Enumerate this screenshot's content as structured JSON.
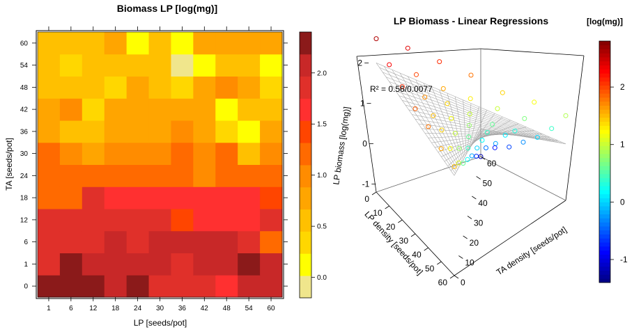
{
  "chart_data": [
    {
      "type": "heatmap",
      "title": "Biomass LP [log(mg)]",
      "xlabel": "LP [seeds/pot]",
      "ylabel": "TA [seeds/pot]",
      "x_categories": [
        "1",
        "6",
        "12",
        "18",
        "24",
        "30",
        "36",
        "42",
        "48",
        "54",
        "60"
      ],
      "y_categories": [
        "0",
        "1",
        "6",
        "12",
        "18",
        "24",
        "30",
        "36",
        "42",
        "48",
        "54",
        "60"
      ],
      "values": [
        [
          2.2,
          2.25,
          2.2,
          2.05,
          2.2,
          1.95,
          1.95,
          1.95,
          1.55,
          2.0,
          2.05
        ],
        [
          1.9,
          2.35,
          2.05,
          2.0,
          2.15,
          2.05,
          1.8,
          2.1,
          2.1,
          2.2,
          2.0
        ],
        [
          1.9,
          1.95,
          1.95,
          2.0,
          1.9,
          2.0,
          2.0,
          2.0,
          2.0,
          1.85,
          1.3
        ],
        [
          1.75,
          1.8,
          1.8,
          1.75,
          1.9,
          1.75,
          1.35,
          1.65,
          1.65,
          1.65,
          1.8
        ],
        [
          1.3,
          1.3,
          1.75,
          1.65,
          1.7,
          1.55,
          1.55,
          1.7,
          1.7,
          1.6,
          1.4
        ],
        [
          1.2,
          1.25,
          1.25,
          1.2,
          1.15,
          1.1,
          1.1,
          1.05,
          1.2,
          1.15,
          1.2
        ],
        [
          1.2,
          1.0,
          0.7,
          1.05,
          1.0,
          1.0,
          1.1,
          0.9,
          1.1,
          0.65,
          0.95
        ],
        [
          0.75,
          0.65,
          0.65,
          0.75,
          0.7,
          0.75,
          0.9,
          0.7,
          0.3,
          0.05,
          0.7
        ],
        [
          0.7,
          0.9,
          0.25,
          0.8,
          0.7,
          0.75,
          0.7,
          0.7,
          0.05,
          0.65,
          0.65
        ],
        [
          0.65,
          0.65,
          0.65,
          0.3,
          0.85,
          0.65,
          0.35,
          0.75,
          0.95,
          0.85,
          0.3
        ],
        [
          0.6,
          0.35,
          0.6,
          0.65,
          0.45,
          0.6,
          -0.2,
          0.05,
          0.6,
          0.6,
          0.05
        ],
        [
          0.55,
          0.55,
          0.5,
          0.85,
          0.05,
          0.45,
          0.1,
          0.75,
          0.75,
          0.75,
          0.7
        ]
      ],
      "colorbar": {
        "range": [
          -0.2,
          2.4
        ],
        "ticks": [
          "0.0",
          "0.5",
          "1.0",
          "1.5",
          "2.0"
        ],
        "tick_values": [
          0.0,
          0.5,
          1.0,
          1.5,
          2.0
        ]
      },
      "colors": [
        "#F0E68C",
        "#FFFF00",
        "#FFD700",
        "#FFC000",
        "#FFA500",
        "#FF8C00",
        "#FF6A00",
        "#FF4500",
        "#FF3030",
        "#E0302A",
        "#C82828",
        "#8B1A1A"
      ]
    },
    {
      "type": "scatter",
      "title": "LP Biomass - Linear Regressions",
      "zlabel": "LP biomass [log(mg)]",
      "xlabel": "LP density [seeds/pot]",
      "ylabel": "TA density [seeds/pot]",
      "annotation": "R² = 0.56/0.0077",
      "z_ticks": [
        "-1",
        "0",
        "1",
        "2"
      ],
      "lp_ticks": [
        "0",
        "10",
        "20",
        "30",
        "40",
        "50",
        "60"
      ],
      "ta_ticks": [
        "0",
        "10",
        "20",
        "30",
        "40",
        "50",
        "60"
      ],
      "colorbar": {
        "title": "[log(mg)]",
        "ticks": [
          "-1",
          "0",
          "1",
          "2"
        ],
        "tick_values": [
          -1,
          0,
          1,
          2
        ],
        "range": [
          -1.4,
          2.8
        ]
      },
      "points": [
        {
          "lp": 0,
          "ta": 0,
          "z": 2.6
        },
        {
          "lp": 0,
          "ta": 10,
          "z": 2.4
        },
        {
          "lp": 0,
          "ta": 20,
          "z": 2.1
        },
        {
          "lp": 0,
          "ta": 30,
          "z": 1.8
        },
        {
          "lp": 0,
          "ta": 40,
          "z": 1.4
        },
        {
          "lp": 0,
          "ta": 50,
          "z": 1.2
        },
        {
          "lp": 0,
          "ta": 60,
          "z": 0.9
        },
        {
          "lp": 10,
          "ta": 0,
          "z": 2.3
        },
        {
          "lp": 10,
          "ta": 10,
          "z": 2.0
        },
        {
          "lp": 10,
          "ta": 20,
          "z": 1.6
        },
        {
          "lp": 10,
          "ta": 30,
          "z": 1.3
        },
        {
          "lp": 10,
          "ta": 40,
          "z": 1.0
        },
        {
          "lp": 10,
          "ta": 50,
          "z": 0.7
        },
        {
          "lp": 10,
          "ta": 60,
          "z": 0.4
        },
        {
          "lp": 20,
          "ta": 0,
          "z": 2.1
        },
        {
          "lp": 20,
          "ta": 10,
          "z": 1.7
        },
        {
          "lp": 20,
          "ta": 20,
          "z": 1.4
        },
        {
          "lp": 20,
          "ta": 30,
          "z": 1.0
        },
        {
          "lp": 20,
          "ta": 40,
          "z": 0.6
        },
        {
          "lp": 20,
          "ta": 50,
          "z": 0.3
        },
        {
          "lp": 20,
          "ta": 60,
          "z": 0.0
        },
        {
          "lp": 30,
          "ta": 0,
          "z": 1.9
        },
        {
          "lp": 30,
          "ta": 10,
          "z": 1.5
        },
        {
          "lp": 30,
          "ta": 20,
          "z": 1.2
        },
        {
          "lp": 30,
          "ta": 30,
          "z": 0.8
        },
        {
          "lp": 30,
          "ta": 40,
          "z": 0.4
        },
        {
          "lp": 30,
          "ta": 50,
          "z": 0.1
        },
        {
          "lp": 30,
          "ta": 60,
          "z": -0.3
        },
        {
          "lp": 40,
          "ta": 0,
          "z": 1.8
        },
        {
          "lp": 40,
          "ta": 10,
          "z": 1.4
        },
        {
          "lp": 40,
          "ta": 20,
          "z": 1.0
        },
        {
          "lp": 40,
          "ta": 30,
          "z": 0.6
        },
        {
          "lp": 40,
          "ta": 40,
          "z": 0.2
        },
        {
          "lp": 40,
          "ta": 50,
          "z": -0.2
        },
        {
          "lp": 40,
          "ta": 60,
          "z": -0.6
        },
        {
          "lp": 50,
          "ta": 0,
          "z": 1.6
        },
        {
          "lp": 50,
          "ta": 10,
          "z": 1.2
        },
        {
          "lp": 50,
          "ta": 20,
          "z": 0.8
        },
        {
          "lp": 50,
          "ta": 30,
          "z": 0.4
        },
        {
          "lp": 50,
          "ta": 40,
          "z": 0.0
        },
        {
          "lp": 50,
          "ta": 50,
          "z": -0.4
        },
        {
          "lp": 50,
          "ta": 60,
          "z": -0.8
        },
        {
          "lp": 60,
          "ta": 0,
          "z": 1.5
        },
        {
          "lp": 60,
          "ta": 10,
          "z": 1.1
        },
        {
          "lp": 60,
          "ta": 20,
          "z": 0.6
        },
        {
          "lp": 60,
          "ta": 30,
          "z": 0.2
        },
        {
          "lp": 60,
          "ta": 40,
          "z": -0.2
        },
        {
          "lp": 60,
          "ta": 50,
          "z": -0.7
        },
        {
          "lp": 60,
          "ta": 60,
          "z": -1.2
        }
      ]
    }
  ]
}
